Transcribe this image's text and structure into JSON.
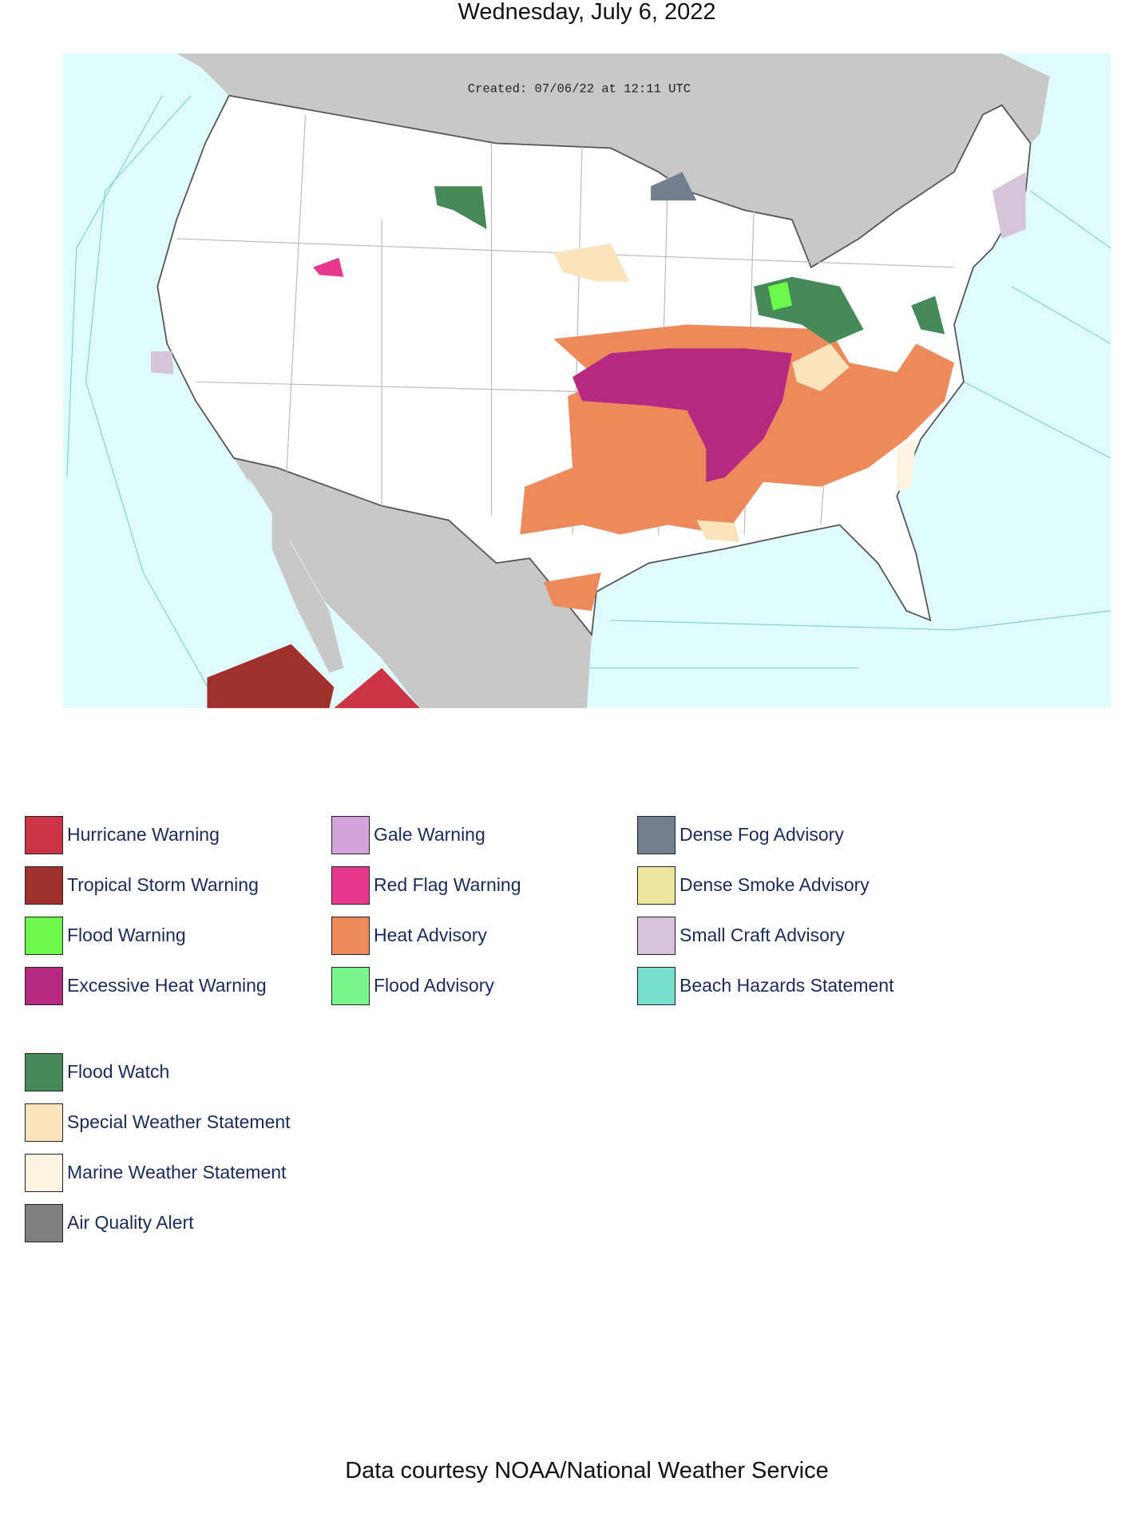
{
  "title": "Wednesday, July 6, 2022",
  "map": {
    "created": "Created: 07/06/22 at 12:11 UTC"
  },
  "legend_groups": [
    {
      "columns": [
        [
          {
            "name": "Hurricane Warning",
            "color": "#cc3344"
          },
          {
            "name": "Tropical Storm Warning",
            "color": "#a0302c"
          },
          {
            "name": "Flood Warning",
            "color": "#6cf84a"
          },
          {
            "name": "Excessive Heat Warning",
            "color": "#b52a80"
          }
        ],
        [
          {
            "name": "Gale Warning",
            "color": "#d4a3da"
          },
          {
            "name": "Red Flag Warning",
            "color": "#e8388e"
          },
          {
            "name": "Heat Advisory",
            "color": "#ec8a5c"
          },
          {
            "name": "Flood Advisory",
            "color": "#7af68c"
          }
        ],
        [
          {
            "name": "Dense Fog Advisory",
            "color": "#737f8e"
          },
          {
            "name": "Dense Smoke Advisory",
            "color": "#ece79c"
          },
          {
            "name": "Small Craft Advisory",
            "color": "#d6c4da"
          },
          {
            "name": "Beach Hazards Statement",
            "color": "#76dfcf"
          }
        ]
      ]
    },
    {
      "columns": [
        [
          {
            "name": "Flood Watch",
            "color": "#468a5a"
          },
          {
            "name": "Special Weather Statement",
            "color": "#fbe4bb"
          },
          {
            "name": "Marine Weather Statement",
            "color": "#fdf2df"
          },
          {
            "name": "Air Quality Alert",
            "color": "#808080"
          }
        ]
      ]
    }
  ],
  "footer": "Data courtesy NOAA/National Weather Service"
}
